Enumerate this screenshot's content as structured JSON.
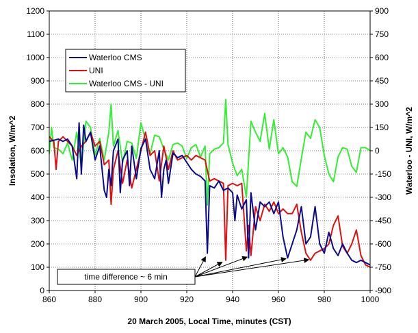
{
  "chart_data": {
    "type": "line",
    "title": "",
    "xlabel": "20 March 2005, Local Time, minutes (CST)",
    "ylabel": "Insolation, W/m^2",
    "y2label": "Waterloo - UNI, W/m^2",
    "xlim": [
      860,
      1000
    ],
    "ylim": [
      0,
      1200
    ],
    "y2lim": [
      -900,
      900
    ],
    "xticks": [
      860,
      880,
      900,
      920,
      940,
      960,
      980,
      1000
    ],
    "yticks": [
      0,
      100,
      200,
      300,
      400,
      500,
      600,
      700,
      800,
      900,
      1000,
      1100,
      1200
    ],
    "y2ticks": [
      -900,
      -750,
      -600,
      -450,
      -300,
      -150,
      0,
      150,
      300,
      450,
      600,
      750,
      900
    ],
    "grid": true,
    "legend_position": "upper-left",
    "series": [
      {
        "name": "Waterloo CMS",
        "color": "#0a0a8c",
        "axis": "left",
        "x": [
          860,
          862,
          864,
          866,
          868,
          870,
          872,
          873,
          874,
          875,
          876,
          878,
          880,
          882,
          884,
          885,
          886,
          887,
          888,
          890,
          891,
          892,
          894,
          895,
          896,
          898,
          900,
          902,
          904,
          906,
          908,
          909,
          910,
          911,
          912,
          914,
          916,
          918,
          920,
          922,
          924,
          926,
          928,
          929,
          930,
          932,
          934,
          936,
          938,
          940,
          941,
          942,
          944,
          946,
          947,
          948,
          950,
          952,
          954,
          956,
          958,
          960,
          962,
          964,
          966,
          968,
          970,
          972,
          974,
          976,
          978,
          980,
          982,
          984,
          986,
          988,
          990,
          992,
          994,
          996,
          998,
          1000
        ],
        "y": [
          640,
          645,
          650,
          640,
          650,
          620,
          480,
          720,
          500,
          710,
          640,
          680,
          560,
          620,
          430,
          400,
          520,
          450,
          600,
          650,
          420,
          560,
          600,
          450,
          620,
          480,
          610,
          650,
          520,
          480,
          600,
          400,
          520,
          560,
          460,
          590,
          570,
          580,
          550,
          520,
          500,
          490,
          470,
          160,
          450,
          440,
          470,
          430,
          440,
          420,
          300,
          410,
          350,
          390,
          140,
          420,
          260,
          380,
          360,
          380,
          330,
          380,
          230,
          140,
          200,
          260,
          360,
          200,
          230,
          360,
          200,
          160,
          250,
          180,
          150,
          200,
          160,
          130,
          120,
          130,
          120,
          110
        ],
        "name_note": ""
      },
      {
        "name": "UNI",
        "color": "#e01010",
        "axis": "left",
        "x": [
          860,
          862,
          863,
          864,
          866,
          868,
          870,
          872,
          874,
          876,
          878,
          880,
          882,
          884,
          886,
          887,
          888,
          890,
          892,
          894,
          896,
          898,
          900,
          902,
          904,
          906,
          908,
          910,
          912,
          914,
          916,
          918,
          920,
          922,
          924,
          926,
          928,
          930,
          932,
          934,
          936,
          937,
          938,
          940,
          942,
          944,
          946,
          947,
          948,
          950,
          952,
          954,
          956,
          958,
          960,
          962,
          964,
          966,
          968,
          970,
          972,
          974,
          976,
          978,
          980,
          982,
          984,
          986,
          988,
          990,
          992,
          994,
          996,
          998,
          1000
        ],
        "y": [
          660,
          640,
          520,
          640,
          660,
          640,
          620,
          580,
          620,
          640,
          680,
          620,
          640,
          540,
          560,
          370,
          520,
          600,
          460,
          560,
          440,
          520,
          600,
          680,
          580,
          600,
          470,
          620,
          520,
          600,
          560,
          570,
          580,
          560,
          580,
          570,
          560,
          470,
          480,
          470,
          460,
          130,
          450,
          460,
          450,
          460,
          170,
          280,
          150,
          360,
          300,
          370,
          340,
          380,
          330,
          350,
          330,
          330,
          370,
          250,
          160,
          130,
          160,
          170,
          180,
          200,
          280,
          320,
          190,
          160,
          200,
          260,
          150,
          110,
          100
        ],
        "name_note": ""
      },
      {
        "name": "Waterloo CMS - UNI",
        "color": "#33ee33",
        "axis": "right",
        "x": [
          860,
          861,
          862,
          864,
          866,
          868,
          870,
          872,
          874,
          876,
          878,
          880,
          882,
          884,
          886,
          887,
          888,
          890,
          892,
          894,
          896,
          898,
          900,
          902,
          904,
          906,
          908,
          910,
          912,
          914,
          916,
          918,
          920,
          922,
          924,
          926,
          928,
          929,
          930,
          932,
          934,
          936,
          937,
          938,
          940,
          942,
          944,
          946,
          948,
          950,
          952,
          954,
          956,
          958,
          960,
          962,
          964,
          966,
          968,
          970,
          972,
          974,
          976,
          978,
          980,
          982,
          984,
          986,
          988,
          990,
          992,
          994,
          996,
          998,
          1000
        ],
        "y": [
          -20,
          150,
          20,
          10,
          -20,
          50,
          -60,
          120,
          -100,
          190,
          150,
          -30,
          80,
          -60,
          120,
          300,
          30,
          130,
          -80,
          60,
          50,
          -50,
          180,
          70,
          -20,
          100,
          90,
          10,
          -60,
          40,
          50,
          30,
          -50,
          20,
          40,
          -40,
          30,
          -350,
          -20,
          10,
          20,
          50,
          330,
          40,
          -80,
          -160,
          -120,
          -300,
          190,
          120,
          60,
          240,
          10,
          200,
          -20,
          20,
          -40,
          -200,
          -230,
          -50,
          120,
          80,
          200,
          150,
          -30,
          -150,
          -200,
          -40,
          20,
          10,
          -100,
          -140,
          20,
          20,
          0
        ],
        "name_note": ""
      }
    ],
    "legend": [
      "Waterloo CMS",
      "UNI",
      "Waterloo CMS - UNI"
    ],
    "annotation": {
      "text": "time difference ~ 6 min",
      "arrow_targets": [
        {
          "x": 929,
          "y": 160
        },
        {
          "x": 937,
          "y": 130
        },
        {
          "x": 948,
          "y": 150
        },
        {
          "x": 965,
          "y": 140
        },
        {
          "x": 975,
          "y": 135
        }
      ]
    }
  }
}
